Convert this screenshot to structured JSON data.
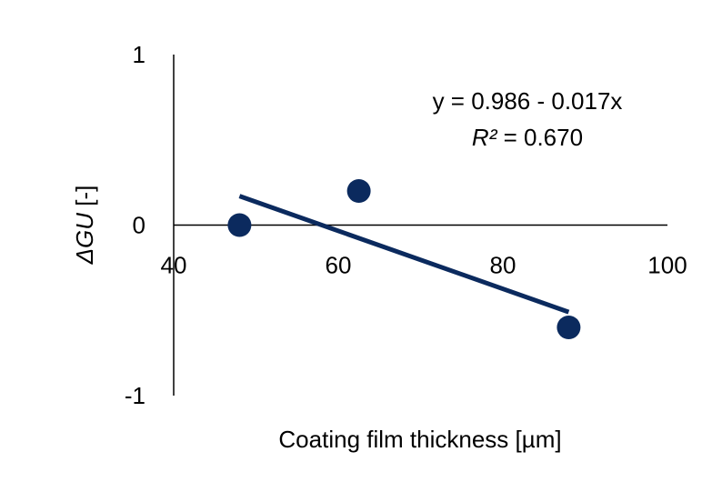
{
  "chart_data": {
    "type": "scatter",
    "xlabel": "Coating film thickness [µm]",
    "ylabel": {
      "italic": "ΔGU",
      "rest": " [-]"
    },
    "xlim": [
      40,
      100
    ],
    "ylim": [
      -1,
      1
    ],
    "x_ticks": [
      "40",
      "60",
      "80",
      "100"
    ],
    "y_ticks": [
      "-1",
      "0",
      "1"
    ],
    "grid": false,
    "points": [
      {
        "x": 48,
        "y": 0.0
      },
      {
        "x": 62.5,
        "y": 0.2
      },
      {
        "x": 88,
        "y": -0.6
      }
    ],
    "trendline": {
      "intercept": 0.986,
      "slope": -0.017,
      "x_range": [
        48,
        88
      ]
    },
    "equation": "y = 0.986 - 0.017x",
    "r2": {
      "label": "R²",
      "value": " = 0.670"
    },
    "colors": {
      "series": "#0b2a5e",
      "axis": "#000000"
    }
  }
}
